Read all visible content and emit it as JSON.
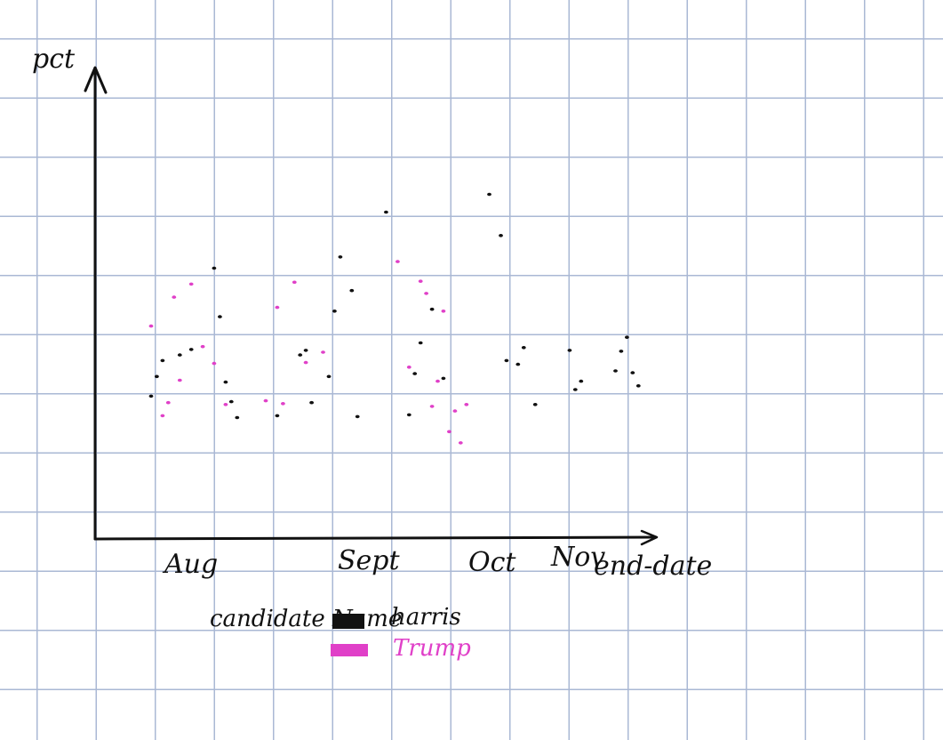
{
  "chart_data": {
    "type": "scatter",
    "title": "",
    "xlabel": "end-date",
    "ylabel": "pct",
    "x_ticks": [
      "Aug",
      "Sept",
      "Oct",
      "Nov"
    ],
    "legend": {
      "title": "candidate Name",
      "placement": "bottom-left",
      "entries": [
        {
          "label": "harris",
          "color": "#111111"
        },
        {
          "label": "Trump",
          "color": "#e040c8"
        }
      ]
    },
    "series": [
      {
        "name": "harris",
        "color": "#111111",
        "points": [
          {
            "x": "Aug 1",
            "y": 45.3
          },
          {
            "x": "Aug 2",
            "y": 47.4
          },
          {
            "x": "Aug 3",
            "y": 49.1
          },
          {
            "x": "Aug 6",
            "y": 49.7
          },
          {
            "x": "Aug 8",
            "y": 50.3
          },
          {
            "x": "Aug 12",
            "y": 59.0
          },
          {
            "x": "Aug 13",
            "y": 53.8
          },
          {
            "x": "Aug 14",
            "y": 46.8
          },
          {
            "x": "Aug 15",
            "y": 44.7
          },
          {
            "x": "Aug 16",
            "y": 43.0
          },
          {
            "x": "Aug 23",
            "y": 43.2
          },
          {
            "x": "Aug 27",
            "y": 49.7
          },
          {
            "x": "Aug 28",
            "y": 50.2
          },
          {
            "x": "Aug 29",
            "y": 44.6
          },
          {
            "x": "Sep 1",
            "y": 47.4
          },
          {
            "x": "Sep 2",
            "y": 54.4
          },
          {
            "x": "Sep 3",
            "y": 60.2
          },
          {
            "x": "Sep 5",
            "y": 56.6
          },
          {
            "x": "Sep 6",
            "y": 43.1
          },
          {
            "x": "Sep 11",
            "y": 65.0
          },
          {
            "x": "Sep 15",
            "y": 43.3
          },
          {
            "x": "Sep 16",
            "y": 47.7
          },
          {
            "x": "Sep 17",
            "y": 51.0
          },
          {
            "x": "Sep 19",
            "y": 54.6
          },
          {
            "x": "Sep 21",
            "y": 47.2
          },
          {
            "x": "Sep 29",
            "y": 66.9
          },
          {
            "x": "Oct 1",
            "y": 62.5
          },
          {
            "x": "Oct 2",
            "y": 49.1
          },
          {
            "x": "Oct 4",
            "y": 48.7
          },
          {
            "x": "Oct 5",
            "y": 50.5
          },
          {
            "x": "Oct 7",
            "y": 44.4
          },
          {
            "x": "Oct 13",
            "y": 50.2
          },
          {
            "x": "Oct 14",
            "y": 46.0
          },
          {
            "x": "Oct 15",
            "y": 46.9
          },
          {
            "x": "Oct 21",
            "y": 48.0
          },
          {
            "x": "Oct 22",
            "y": 50.1
          },
          {
            "x": "Oct 23",
            "y": 51.6
          },
          {
            "x": "Oct 24",
            "y": 47.8
          },
          {
            "x": "Oct 25",
            "y": 46.4
          }
        ]
      },
      {
        "name": "Trump",
        "color": "#e040c8",
        "points": [
          {
            "x": "Aug 1",
            "y": 52.8
          },
          {
            "x": "Aug 3",
            "y": 43.2
          },
          {
            "x": "Aug 4",
            "y": 44.6
          },
          {
            "x": "Aug 5",
            "y": 55.9
          },
          {
            "x": "Aug 6",
            "y": 47.0
          },
          {
            "x": "Aug 8",
            "y": 57.3
          },
          {
            "x": "Aug 10",
            "y": 50.6
          },
          {
            "x": "Aug 12",
            "y": 48.8
          },
          {
            "x": "Aug 14",
            "y": 44.4
          },
          {
            "x": "Aug 21",
            "y": 44.8
          },
          {
            "x": "Aug 23",
            "y": 54.8
          },
          {
            "x": "Aug 24",
            "y": 44.5
          },
          {
            "x": "Aug 26",
            "y": 57.5
          },
          {
            "x": "Aug 28",
            "y": 48.9
          },
          {
            "x": "Aug 31",
            "y": 50.0
          },
          {
            "x": "Sep 13",
            "y": 59.7
          },
          {
            "x": "Sep 15",
            "y": 48.4
          },
          {
            "x": "Sep 17",
            "y": 57.6
          },
          {
            "x": "Sep 18",
            "y": 56.3
          },
          {
            "x": "Sep 19",
            "y": 44.2
          },
          {
            "x": "Sep 20",
            "y": 46.9
          },
          {
            "x": "Sep 21",
            "y": 54.4
          },
          {
            "x": "Sep 22",
            "y": 41.5
          },
          {
            "x": "Sep 23",
            "y": 43.7
          },
          {
            "x": "Sep 24",
            "y": 40.3
          },
          {
            "x": "Sep 25",
            "y": 44.4
          }
        ]
      }
    ]
  }
}
